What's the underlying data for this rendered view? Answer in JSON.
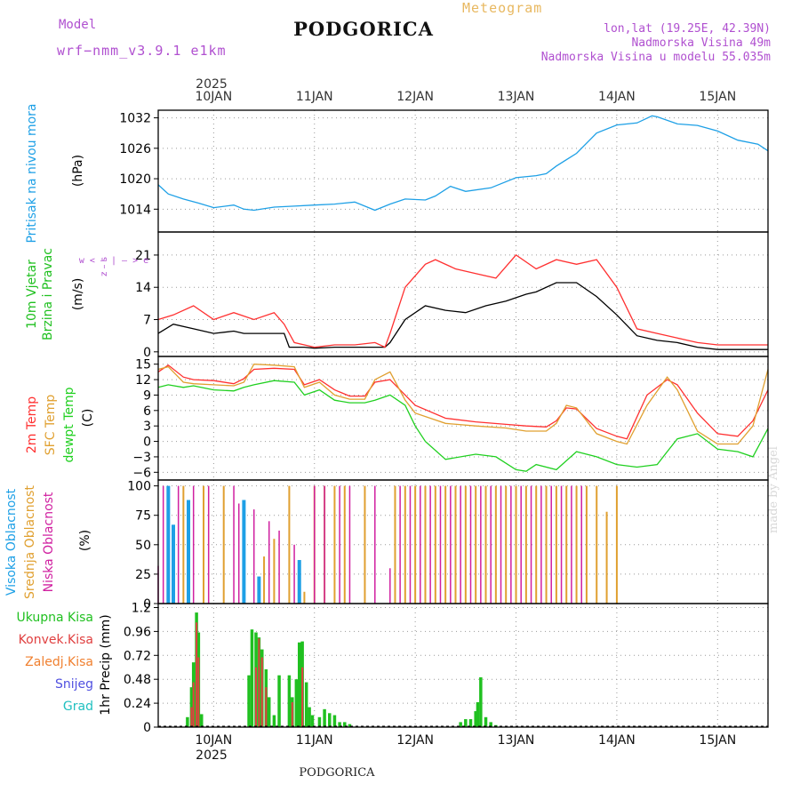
{
  "header": {
    "title": "PODGORICA",
    "meteogram_label": "Meteogram",
    "model_label": "Model",
    "model_name": "wrf−nmm_v3.9.1  e1km",
    "coords": "lon,lat (19.25E, 42.39N)",
    "altitude": "Nadmorska Visina 49m",
    "model_altitude": "Nadmorska Visina u modelu 55.035m",
    "year_top": "2025",
    "year_bottom": "2025",
    "footer": "PODGORICA",
    "watermark": "made by Angel"
  },
  "colors": {
    "pressure": "#1ea0e6",
    "temp2m": "#ff3030",
    "sfc": "#e0a030",
    "dewpt": "#20d020",
    "high_cloud": "#1ea0e6",
    "mid_cloud": "#e0a030",
    "low_cloud": "#d020a0",
    "total_rain": "#20c020",
    "conv_rain": "#e04040",
    "frz_rain": "#f08030",
    "snow": "#5050e0",
    "graupel": "#20c0c0",
    "wind_mean": "#000000",
    "gust": "#ff3030",
    "label_purple": "#b050d0"
  },
  "time_axis": {
    "day_labels": [
      "10JAN",
      "11JAN",
      "12JAN",
      "13JAN",
      "14JAN",
      "15JAN"
    ],
    "range_days": [
      -0.55,
      5.5
    ]
  },
  "chart_data": [
    {
      "type": "line",
      "ylabel": "Pritisak na nivou mora",
      "units": "(hPa)",
      "yticks": [
        "1032",
        "1026",
        "1020",
        "1014"
      ],
      "ylim": [
        1009.5,
        1033.5
      ],
      "grid": true,
      "series": [
        {
          "name": "Pritisak na nivou mora",
          "x": [
            -0.55,
            -0.45,
            -0.3,
            -0.15,
            0,
            0.2,
            0.3,
            0.4,
            0.6,
            0.8,
            1.0,
            1.2,
            1.4,
            1.6,
            1.75,
            1.9,
            2.1,
            2.2,
            2.35,
            2.5,
            2.75,
            3.0,
            3.2,
            3.3,
            3.4,
            3.6,
            3.8,
            4.0,
            4.2,
            4.35,
            4.4,
            4.6,
            4.8,
            5.0,
            5.2,
            5.4,
            5.5
          ],
          "y": [
            1018.8,
            1017,
            1016,
            1015.2,
            1014.3,
            1014.8,
            1014,
            1013.8,
            1014.4,
            1014.6,
            1014.8,
            1015,
            1015.4,
            1013.8,
            1015,
            1016,
            1015.8,
            1016.6,
            1018.5,
            1017.5,
            1018.2,
            1020.2,
            1020.6,
            1021,
            1022.5,
            1025,
            1029,
            1030.6,
            1031,
            1032.4,
            1032.2,
            1030.8,
            1030.5,
            1029.4,
            1027.6,
            1026.8,
            1025.5
          ]
        }
      ]
    },
    {
      "type": "line",
      "ylabel": "10m Vjetar Brzina i Pravac",
      "units": "(m/s)",
      "yticks": [
        "21",
        "14",
        "7",
        "0"
      ],
      "ylim": [
        -1,
        26
      ],
      "grid": true,
      "compass": [
        "w",
        "<",
        "–",
        "|",
        "–",
        ">",
        "e",
        "z",
        "s"
      ],
      "series": [
        {
          "name": "mean",
          "x": [
            -0.55,
            -0.4,
            -0.2,
            0,
            0.2,
            0.3,
            0.5,
            0.7,
            0.75,
            0.9,
            1.0,
            1.2,
            1.4,
            1.7,
            1.75,
            1.9,
            2.1,
            2.3,
            2.5,
            2.7,
            2.9,
            3.1,
            3.2,
            3.4,
            3.6,
            3.8,
            4.0,
            4.2,
            4.4,
            4.6,
            4.8,
            5.0,
            5.2,
            5.5
          ],
          "y": [
            4,
            6,
            5,
            4,
            4.5,
            4,
            4,
            4,
            1,
            1,
            0.8,
            1,
            1,
            1,
            2,
            7,
            10,
            9,
            8.5,
            10,
            11,
            12.5,
            13,
            15,
            15,
            12,
            8,
            3.5,
            2.5,
            2,
            1,
            0.5,
            0.5,
            0.5
          ]
        },
        {
          "name": "gust",
          "x": [
            -0.55,
            -0.4,
            -0.2,
            0,
            0.2,
            0.4,
            0.6,
            0.7,
            0.8,
            1.0,
            1.2,
            1.4,
            1.6,
            1.7,
            1.75,
            1.9,
            2.1,
            2.2,
            2.4,
            2.6,
            2.8,
            3.0,
            3.2,
            3.4,
            3.6,
            3.8,
            4.0,
            4.2,
            4.4,
            4.6,
            4.8,
            5.0,
            5.2,
            5.5
          ],
          "y": [
            7,
            8,
            10,
            7,
            8.5,
            7,
            8.5,
            6,
            2,
            1,
            1.5,
            1.5,
            2,
            1,
            4,
            14,
            19,
            20,
            18,
            17,
            16,
            21,
            18,
            20,
            19,
            20,
            14,
            5,
            4,
            3,
            2,
            1.5,
            1.5,
            1.5
          ]
        }
      ]
    },
    {
      "type": "line",
      "ylabel": "2m Temp / SFC Temp / dewpt Temp",
      "units": "(C)",
      "yticks": [
        "15",
        "12",
        "9",
        "6",
        "3",
        "0",
        "−3",
        "−6"
      ],
      "ylim": [
        -7.5,
        16.5
      ],
      "grid": true,
      "series": [
        {
          "name": "2m Temp",
          "x": [
            -0.55,
            -0.45,
            -0.3,
            -0.2,
            0,
            0.2,
            0.3,
            0.4,
            0.6,
            0.8,
            0.9,
            1.05,
            1.2,
            1.35,
            1.5,
            1.6,
            1.75,
            1.9,
            2.0,
            2.3,
            2.6,
            2.9,
            3.1,
            3.3,
            3.4,
            3.5,
            3.6,
            3.8,
            4.0,
            4.1,
            4.3,
            4.5,
            4.6,
            4.8,
            5.0,
            5.2,
            5.35,
            5.5
          ],
          "y": [
            13.5,
            14.8,
            12.5,
            12,
            11.8,
            11.2,
            12.2,
            14,
            14.2,
            14,
            11,
            12,
            10,
            8.8,
            8.8,
            11.5,
            12,
            9,
            7,
            4.5,
            3.8,
            3.3,
            3,
            2.8,
            4,
            6.5,
            6.3,
            2.5,
            1,
            0.5,
            9,
            12,
            11,
            5.5,
            1.5,
            1,
            4,
            10
          ]
        },
        {
          "name": "SFC Temp",
          "x": [
            -0.55,
            -0.45,
            -0.3,
            -0.2,
            0,
            0.2,
            0.3,
            0.4,
            0.6,
            0.8,
            0.9,
            1.05,
            1.2,
            1.35,
            1.5,
            1.6,
            1.75,
            1.9,
            2.0,
            2.3,
            2.6,
            2.9,
            3.1,
            3.3,
            3.4,
            3.5,
            3.6,
            3.8,
            4.0,
            4.1,
            4.3,
            4.5,
            4.6,
            4.8,
            5.0,
            5.2,
            5.35,
            5.5
          ],
          "y": [
            14,
            14.5,
            11.5,
            11.2,
            11,
            10.8,
            11.5,
            15,
            14.8,
            14.5,
            10.5,
            11.5,
            9,
            8.2,
            8.2,
            12,
            13.5,
            8,
            5.5,
            3.5,
            3,
            2.6,
            2,
            2,
            3.5,
            7,
            6.5,
            1.5,
            0,
            -0.5,
            7,
            12.5,
            10,
            2,
            -0.5,
            -0.5,
            3,
            14
          ]
        },
        {
          "name": "dewpt Temp",
          "x": [
            -0.55,
            -0.45,
            -0.3,
            -0.2,
            0,
            0.2,
            0.3,
            0.4,
            0.6,
            0.8,
            0.9,
            1.05,
            1.2,
            1.35,
            1.5,
            1.6,
            1.75,
            1.9,
            2.0,
            2.1,
            2.3,
            2.6,
            2.8,
            3.0,
            3.1,
            3.2,
            3.4,
            3.6,
            3.8,
            4.0,
            4.2,
            4.4,
            4.5,
            4.6,
            4.8,
            5.0,
            5.2,
            5.35,
            5.5
          ],
          "y": [
            10.5,
            11,
            10.5,
            10.8,
            10,
            9.8,
            10.5,
            11,
            11.8,
            11.5,
            9,
            10,
            8,
            7.5,
            7.5,
            8,
            9,
            7,
            3,
            0,
            -3.5,
            -2.5,
            -3,
            -5.5,
            -5.8,
            -4.5,
            -5.5,
            -2,
            -3,
            -4.5,
            -5,
            -4.5,
            -2,
            0.5,
            1.5,
            -1.5,
            -2,
            -3,
            2.5
          ]
        }
      ]
    },
    {
      "type": "bar",
      "ylabel": "Visoka Oblacnost / Srednja Oblacnost / Niska Oblacnost",
      "units": "(%)",
      "yticks": [
        "100",
        "75",
        "50",
        "25",
        "0"
      ],
      "ylim": [
        0,
        105
      ],
      "grid": true,
      "series": [
        {
          "name": "Visoka Oblacnost",
          "x": [
            -0.45,
            -0.4,
            -0.25,
            0.3,
            0.45,
            0.85
          ],
          "y": [
            100,
            67,
            88,
            88,
            23,
            37
          ]
        },
        {
          "name": "Srednja Oblacnost",
          "x": [
            -0.3,
            -0.1,
            0.1,
            0.5,
            0.6,
            0.75,
            0.9,
            1.0,
            1.1,
            1.2,
            1.3,
            1.5,
            1.8,
            1.9,
            2.0,
            2.1,
            2.2,
            2.3,
            2.4,
            2.5,
            2.6,
            2.7,
            2.8,
            2.9,
            3.0,
            3.1,
            3.2,
            3.3,
            3.4,
            3.5,
            3.6,
            3.7,
            3.8,
            3.9,
            4.0
          ],
          "y": [
            100,
            100,
            100,
            40,
            55,
            100,
            10,
            100,
            100,
            100,
            100,
            100,
            100,
            100,
            100,
            100,
            100,
            100,
            100,
            100,
            100,
            100,
            100,
            100,
            100,
            100,
            100,
            100,
            100,
            100,
            100,
            100,
            100,
            78,
            100
          ]
        },
        {
          "name": "Niska Oblacnost",
          "x": [
            -0.55,
            -0.5,
            -0.35,
            -0.2,
            -0.05,
            0.2,
            0.25,
            0.4,
            0.55,
            0.65,
            0.8,
            1.0,
            1.1,
            1.25,
            1.35,
            1.6,
            1.75,
            1.85,
            1.95,
            2.05,
            2.15,
            2.25,
            2.35,
            2.45,
            2.55,
            2.65,
            2.75,
            2.85,
            2.95,
            3.05,
            3.15,
            3.25,
            3.35,
            3.45,
            3.55,
            3.65
          ],
          "y": [
            32,
            100,
            100,
            100,
            100,
            100,
            85,
            80,
            70,
            62,
            50,
            100,
            100,
            100,
            100,
            100,
            30,
            100,
            100,
            100,
            100,
            100,
            100,
            100,
            100,
            100,
            100,
            100,
            100,
            100,
            100,
            100,
            100,
            100,
            100,
            100
          ]
        }
      ]
    },
    {
      "type": "bar",
      "ylabel": "1hr Precip (mm)",
      "units": "(mm)",
      "yticks": [
        "1.2",
        "0.96",
        "0.72",
        "0.48",
        "0.24",
        "0"
      ],
      "ylim": [
        0,
        1.24
      ],
      "grid": true,
      "legend": [
        "Ukupna Kisa",
        "Konvek.Kisa",
        "Zaledj.Kisa",
        "Snijeg",
        "Grad"
      ],
      "series": [
        {
          "name": "Ukupna Kisa",
          "x": [
            -0.26,
            -0.22,
            -0.2,
            -0.17,
            -0.15,
            -0.12,
            0.35,
            0.38,
            0.42,
            0.45,
            0.48,
            0.52,
            0.55,
            0.6,
            0.65,
            0.75,
            0.78,
            0.82,
            0.85,
            0.88,
            0.92,
            0.95,
            0.98,
            1.05,
            1.1,
            1.15,
            1.2,
            1.25,
            1.3,
            1.35,
            2.45,
            2.5,
            2.55,
            2.6,
            2.62,
            2.65,
            2.7,
            2.75,
            2.8
          ],
          "y": [
            0.1,
            0.4,
            0.65,
            1.15,
            0.95,
            0.13,
            0.52,
            0.98,
            0.95,
            0.9,
            0.78,
            0.58,
            0.3,
            0.12,
            0.52,
            0.52,
            0.3,
            0.48,
            0.85,
            0.86,
            0.45,
            0.2,
            0.12,
            0.1,
            0.18,
            0.14,
            0.12,
            0.05,
            0.05,
            0.03,
            0.05,
            0.08,
            0.08,
            0.16,
            0.25,
            0.5,
            0.1,
            0.05,
            0.02
          ]
        },
        {
          "name": "Konvek.Kisa",
          "x": [
            -0.22,
            -0.2,
            -0.17,
            -0.15,
            0.42,
            0.45,
            0.48,
            0.52,
            0.78,
            0.88
          ],
          "y": [
            0.2,
            0.45,
            1.05,
            0.7,
            0.6,
            0.89,
            0.7,
            0.4,
            0.25,
            0.6
          ]
        }
      ]
    }
  ]
}
